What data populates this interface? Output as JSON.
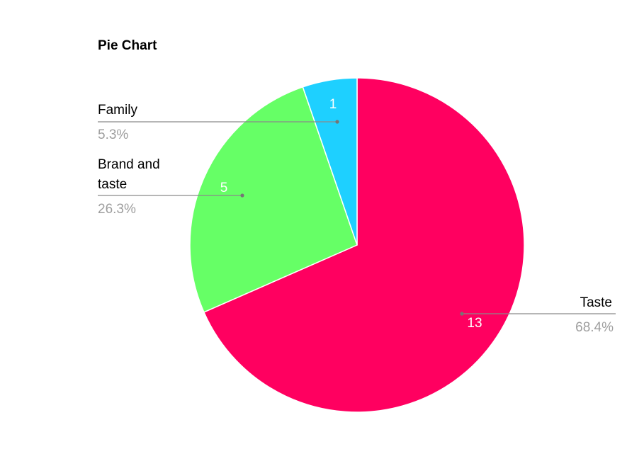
{
  "chart_data": {
    "type": "pie",
    "title": "Pie Chart",
    "slices": [
      {
        "label": "Taste",
        "value": 13,
        "percent": "68.4%",
        "color": "#ff0060"
      },
      {
        "label": "Brand and taste",
        "label_lines": [
          "Brand and",
          "taste"
        ],
        "value": 5,
        "percent": "26.3%",
        "color": "#66ff66"
      },
      {
        "label": "Family",
        "value": 1,
        "percent": "5.3%",
        "color": "#1ed0ff"
      }
    ],
    "start_angle_deg": 0,
    "direction": "clockwise",
    "legend": "none"
  }
}
